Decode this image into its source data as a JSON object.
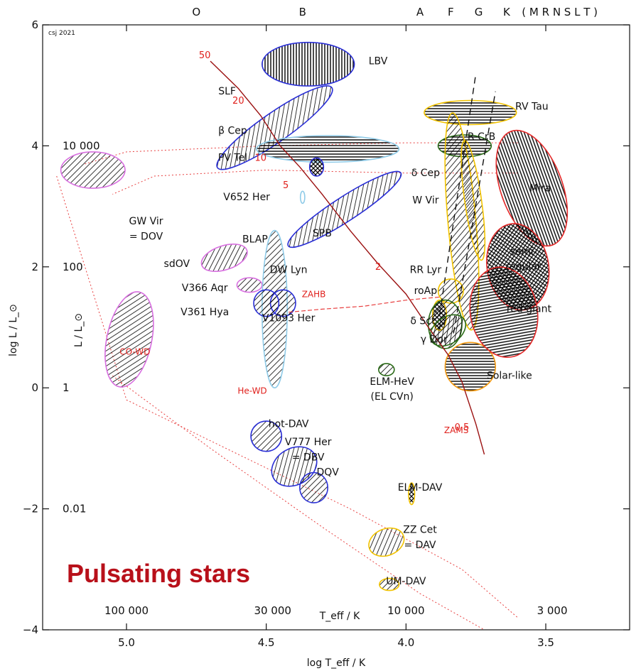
{
  "chart_data": {
    "type": "scatter",
    "title": "Pulsating stars",
    "credit": "csj 2021",
    "xlabel_bottom": "log T_eff / K",
    "xlabel_inner": "T_eff / K",
    "ylabel": "log L / L_⊙",
    "ylabel_inner": "L / L_⊙",
    "x_reversed": true,
    "xlim": [
      5.3,
      3.2
    ],
    "ylim": [
      -4,
      6
    ],
    "x_ticks": [
      5.0,
      4.5,
      4.0,
      3.5
    ],
    "x_tick_labels": [
      "5.0",
      "4.5",
      "4.0",
      "3.5"
    ],
    "y_ticks": [
      -4,
      -2,
      0,
      2,
      4,
      6
    ],
    "y_tick_labels": [
      "−4",
      "−2",
      "0",
      "2",
      "4",
      "6"
    ],
    "lum_labels": [
      {
        "y": 4,
        "text": "10 000"
      },
      {
        "y": 2,
        "text": "100"
      },
      {
        "y": 0,
        "text": "1"
      },
      {
        "y": -2,
        "text": "0.01"
      }
    ],
    "teff_labels": [
      {
        "x": 5.0,
        "text": "100 000"
      },
      {
        "x": 4.477,
        "text": "30 000"
      },
      {
        "x": 4.0,
        "text": "10 000"
      },
      {
        "x": 3.477,
        "text": "3 000"
      }
    ],
    "spectral_classes": [
      {
        "x": 4.75,
        "text": "O"
      },
      {
        "x": 4.37,
        "text": "B"
      },
      {
        "x": 3.95,
        "text": "A"
      },
      {
        "x": 3.84,
        "text": "F"
      },
      {
        "x": 3.74,
        "text": "G"
      },
      {
        "x": 3.64,
        "text": "K"
      },
      {
        "x": 3.45,
        "text": "( M R N S L T )"
      }
    ],
    "regions": [
      {
        "name": "LBV",
        "x": 4.35,
        "y": 5.35,
        "rx": 0.165,
        "ry": 0.36,
        "angle": 0,
        "color": "#2a2fd6",
        "hatch": "vertical"
      },
      {
        "name": "SLF",
        "x": 4.47,
        "y": 4.3,
        "rx": 0.25,
        "ry": 0.24,
        "angle": -35,
        "color": "#2a2fd6",
        "hatch": "diag"
      },
      {
        "name": "β Cep",
        "x": 4.28,
        "y": 3.95,
        "rx": 0.255,
        "ry": 0.22,
        "angle": 0,
        "color": "#8fcbe8",
        "hatch": "horizontal"
      },
      {
        "name": "SPB",
        "x": 4.22,
        "y": 2.95,
        "rx": 0.24,
        "ry": 0.2,
        "angle": -33,
        "color": "#2a2fd6",
        "hatch": "diag"
      },
      {
        "name": "V652 Her",
        "x": 4.37,
        "y": 3.15,
        "rx": 0.008,
        "ry": 0.1,
        "angle": 0,
        "color": "#8fcbe8",
        "hatch": "none"
      },
      {
        "name": "PV Tel",
        "x": 4.32,
        "y": 3.65,
        "rx": 0.025,
        "ry": 0.15,
        "angle": 0,
        "color": "#2a2fd6",
        "hatch": "cross"
      },
      {
        "name": "GW Vir = DOV",
        "x": 5.12,
        "y": 3.6,
        "rx": 0.115,
        "ry": 0.3,
        "angle": 0,
        "color": "#d86fe0",
        "hatch": "diag"
      },
      {
        "name": "sdOV",
        "x": 4.65,
        "y": 2.15,
        "rx": 0.085,
        "ry": 0.2,
        "angle": -18,
        "color": "#d86fe0",
        "hatch": "diag"
      },
      {
        "name": "V366 Aqr",
        "x": 4.56,
        "y": 1.7,
        "rx": 0.045,
        "ry": 0.12,
        "angle": 0,
        "color": "#d86fe0",
        "hatch": "diag"
      },
      {
        "name": "CO-WD",
        "x": 4.99,
        "y": 0.8,
        "rx": 0.08,
        "ry": 0.8,
        "angle": 12,
        "color": "#d86fe0",
        "hatch": "diag"
      },
      {
        "name": "BLAP",
        "x": 4.47,
        "y": 1.3,
        "rx": 0.045,
        "ry": 1.3,
        "angle": 0,
        "color": "#8fcbe8",
        "hatch": "diag"
      },
      {
        "name": "DW Lyn",
        "x": 4.44,
        "y": 1.4,
        "rx": 0.045,
        "ry": 0.22,
        "angle": 0,
        "color": "#2a2fd6",
        "hatch": "diag"
      },
      {
        "name": "V361 Hya",
        "x": 4.5,
        "y": 1.4,
        "rx": 0.045,
        "ry": 0.22,
        "angle": 0,
        "color": "#2a2fd6",
        "hatch": "diag"
      },
      {
        "name": "hot-DAV",
        "x": 4.5,
        "y": -0.8,
        "rx": 0.055,
        "ry": 0.25,
        "angle": 0,
        "color": "#2a2fd6",
        "hatch": "diag"
      },
      {
        "name": "V777 Her = DBV",
        "x": 4.4,
        "y": -1.3,
        "rx": 0.085,
        "ry": 0.3,
        "angle": -30,
        "color": "#2a2fd6",
        "hatch": "diag"
      },
      {
        "name": "DQV",
        "x": 4.33,
        "y": -1.65,
        "rx": 0.05,
        "ry": 0.25,
        "angle": 0,
        "color": "#2a2fd6",
        "hatch": "diag"
      },
      {
        "name": "ELM-DAV",
        "x": 3.98,
        "y": -1.75,
        "rx": 0.011,
        "ry": 0.18,
        "angle": 0,
        "color": "#f2c300",
        "hatch": "cross"
      },
      {
        "name": "ZZ Cet = DAV",
        "x": 4.07,
        "y": -2.55,
        "rx": 0.065,
        "ry": 0.22,
        "angle": -22,
        "color": "#f2c300",
        "hatch": "diag"
      },
      {
        "name": "UM-DAV",
        "x": 4.06,
        "y": -3.25,
        "rx": 0.035,
        "ry": 0.1,
        "angle": 0,
        "color": "#f2c300",
        "hatch": "diag"
      },
      {
        "name": "ELM-HeV (EL CVn)",
        "x": 4.07,
        "y": 0.3,
        "rx": 0.028,
        "ry": 0.1,
        "angle": 0,
        "color": "#2b6b18",
        "hatch": "diag"
      },
      {
        "name": "RV Tau",
        "x": 3.77,
        "y": 4.55,
        "rx": 0.165,
        "ry": 0.2,
        "angle": 0,
        "color": "#f2c300",
        "hatch": "horizontal"
      },
      {
        "name": "R CrB",
        "x": 3.79,
        "y": 4.0,
        "rx": 0.095,
        "ry": 0.18,
        "angle": 0,
        "color": "#2b6b18",
        "hatch": "horizontal"
      },
      {
        "name": "δ Cep",
        "x": 3.8,
        "y": 2.75,
        "rx": 0.05,
        "ry": 1.8,
        "angle": -5,
        "color": "#f2c300",
        "hatch": "diag"
      },
      {
        "name": "W Vir",
        "x": 3.76,
        "y": 3.1,
        "rx": 0.03,
        "ry": 1.0,
        "angle": -8,
        "color": "#f2c300",
        "hatch": "diag"
      },
      {
        "name": "RR Lyr",
        "x": 3.84,
        "y": 1.6,
        "rx": 0.045,
        "ry": 0.2,
        "angle": 0,
        "color": "#f2c300",
        "hatch": "diag"
      },
      {
        "name": "roAp",
        "x": 3.88,
        "y": 1.2,
        "rx": 0.025,
        "ry": 0.25,
        "angle": 0,
        "color": "#f2c300",
        "hatch": "cross"
      },
      {
        "name": "Solar-like",
        "x": 3.77,
        "y": 0.35,
        "rx": 0.09,
        "ry": 0.4,
        "angle": 0,
        "color": "#f39a12",
        "hatch": "horizontal"
      },
      {
        "name": "δ Sct",
        "x": 3.86,
        "y": 1.05,
        "rx": 0.06,
        "ry": 0.4,
        "angle": 0,
        "color": "#2b6b18",
        "hatch": "diag"
      },
      {
        "name": "γ Dor",
        "x": 3.85,
        "y": 0.95,
        "rx": 0.07,
        "ry": 0.22,
        "angle": -35,
        "color": "#2b6b18",
        "hatch": "diag"
      },
      {
        "name": "Mira",
        "x": 3.55,
        "y": 3.3,
        "rx": 0.11,
        "ry": 1.0,
        "angle": -20,
        "color": "#e52a2a",
        "hatch": "vertical"
      },
      {
        "name": "semi-regular",
        "x": 3.6,
        "y": 2.0,
        "rx": 0.11,
        "ry": 0.72,
        "angle": -10,
        "color": "#e52a2a",
        "hatch": "cross"
      },
      {
        "name": "red giant",
        "x": 3.65,
        "y": 1.25,
        "rx": 0.12,
        "ry": 0.75,
        "angle": -10,
        "color": "#e52a2a",
        "hatch": "horizontal"
      }
    ],
    "zams_line": {
      "label": "ZAMS",
      "x": [
        4.7,
        4.6,
        4.52,
        4.45,
        4.38,
        4.3,
        4.2,
        4.1,
        4.0,
        3.92,
        3.85,
        3.8,
        3.75,
        3.72
      ],
      "y": [
        5.4,
        4.95,
        4.5,
        4.0,
        3.65,
        3.2,
        2.6,
        2.05,
        1.55,
        1.0,
        0.55,
        0.1,
        -0.6,
        -1.1
      ]
    },
    "zahb_line": {
      "label": "ZAHB",
      "x": [
        4.42,
        4.3,
        4.15,
        4.0,
        3.88
      ],
      "y": [
        1.25,
        1.3,
        1.35,
        1.45,
        1.5
      ]
    },
    "mass_labels": [
      {
        "x": 4.72,
        "y": 5.45,
        "text": "50"
      },
      {
        "x": 4.6,
        "y": 4.7,
        "text": "20"
      },
      {
        "x": 4.52,
        "y": 3.75,
        "text": "10"
      },
      {
        "x": 4.43,
        "y": 3.3,
        "text": "5"
      },
      {
        "x": 4.1,
        "y": 1.95,
        "text": "2"
      },
      {
        "x": 3.8,
        "y": -0.7,
        "text": "0.5"
      }
    ],
    "instability_strip": {
      "blue_edge": {
        "x": [
          3.88,
          3.75
        ],
        "y": [
          1.2,
          5.2
        ]
      },
      "red_edge": {
        "x": [
          3.83,
          3.68
        ],
        "y": [
          0.9,
          4.9
        ]
      }
    },
    "wd_cooling_tracks": [
      {
        "x": [
          5.25,
          5.0,
          4.6,
          4.2,
          3.8,
          3.6
        ],
        "y": [
          3.5,
          -0.2,
          -1.1,
          -2.0,
          -3.0,
          -3.8
        ]
      },
      {
        "x": [
          5.05,
          4.7,
          4.3,
          3.95,
          3.72
        ],
        "y": [
          0.2,
          -1.0,
          -2.3,
          -3.4,
          -4.0
        ]
      }
    ],
    "post_agb_tracks": [
      {
        "x": [
          3.6,
          4.0,
          4.5,
          5.0,
          5.15
        ],
        "y": [
          4.05,
          4.05,
          4.0,
          3.9,
          3.7
        ]
      },
      {
        "x": [
          3.6,
          4.0,
          4.5,
          4.9,
          5.05
        ],
        "y": [
          3.55,
          3.55,
          3.6,
          3.5,
          3.2
        ]
      }
    ],
    "text_labels": [
      {
        "x": 4.1,
        "y": 5.35,
        "text": "LBV",
        "cls": "region"
      },
      {
        "x": 4.64,
        "y": 4.85,
        "text": "SLF",
        "cls": "region"
      },
      {
        "x": 4.62,
        "y": 4.2,
        "text": "β Cep",
        "cls": "region"
      },
      {
        "x": 4.62,
        "y": 3.75,
        "text": "PV Tel",
        "cls": "region"
      },
      {
        "x": 4.57,
        "y": 3.1,
        "text": "V652 Her",
        "cls": "region"
      },
      {
        "x": 4.3,
        "y": 2.5,
        "text": "SPB",
        "cls": "region"
      },
      {
        "x": 4.93,
        "y": 2.7,
        "text": "GW Vir",
        "cls": "region"
      },
      {
        "x": 4.93,
        "y": 2.45,
        "text": "= DOV",
        "cls": "region"
      },
      {
        "x": 4.82,
        "y": 2.0,
        "text": "sdOV",
        "cls": "region"
      },
      {
        "x": 4.54,
        "y": 2.4,
        "text": "BLAP",
        "cls": "region"
      },
      {
        "x": 4.42,
        "y": 1.9,
        "text": "DW Lyn",
        "cls": "region"
      },
      {
        "x": 4.72,
        "y": 1.6,
        "text": "V366 Aqr",
        "cls": "region"
      },
      {
        "x": 4.72,
        "y": 1.2,
        "text": "V361 Hya",
        "cls": "region"
      },
      {
        "x": 4.42,
        "y": 1.1,
        "text": "V1093 Her",
        "cls": "region"
      },
      {
        "x": 4.33,
        "y": 1.5,
        "text": "ZAHB",
        "cls": "red"
      },
      {
        "x": 4.97,
        "y": 0.55,
        "text": "CO-WD",
        "cls": "red"
      },
      {
        "x": 4.55,
        "y": -0.1,
        "text": "He-WD",
        "cls": "red"
      },
      {
        "x": 4.42,
        "y": -0.65,
        "text": "hot-DAV",
        "cls": "region"
      },
      {
        "x": 4.35,
        "y": -0.95,
        "text": "V777 Her",
        "cls": "region"
      },
      {
        "x": 4.35,
        "y": -1.2,
        "text": "= DBV",
        "cls": "region"
      },
      {
        "x": 4.28,
        "y": -1.45,
        "text": "DQV",
        "cls": "region"
      },
      {
        "x": 3.95,
        "y": -1.7,
        "text": "ELM-DAV",
        "cls": "region"
      },
      {
        "x": 3.95,
        "y": -2.4,
        "text": "ZZ Cet",
        "cls": "region"
      },
      {
        "x": 3.95,
        "y": -2.65,
        "text": "= DAV",
        "cls": "region"
      },
      {
        "x": 4.0,
        "y": -3.25,
        "text": "UM-DAV",
        "cls": "region"
      },
      {
        "x": 4.05,
        "y": 0.05,
        "text": "ELM-HeV",
        "cls": "region"
      },
      {
        "x": 4.05,
        "y": -0.2,
        "text": "(EL CVn)",
        "cls": "region"
      },
      {
        "x": 3.82,
        "y": -0.75,
        "text": "ZAMS",
        "cls": "red"
      },
      {
        "x": 3.55,
        "y": 4.6,
        "text": "RV Tau",
        "cls": "region"
      },
      {
        "x": 3.73,
        "y": 4.1,
        "text": "R CrB",
        "cls": "region"
      },
      {
        "x": 3.93,
        "y": 3.5,
        "text": "δ Cep",
        "cls": "region"
      },
      {
        "x": 3.93,
        "y": 3.05,
        "text": "W Vir",
        "cls": "region"
      },
      {
        "x": 3.52,
        "y": 3.25,
        "text": "Mira",
        "cls": "region"
      },
      {
        "x": 3.93,
        "y": 1.9,
        "text": "RR Lyr",
        "cls": "region"
      },
      {
        "x": 3.58,
        "y": 2.2,
        "text": "semi-",
        "cls": "region"
      },
      {
        "x": 3.58,
        "y": 1.95,
        "text": "regular",
        "cls": "region"
      },
      {
        "x": 3.93,
        "y": 1.55,
        "text": "roAp",
        "cls": "region"
      },
      {
        "x": 3.56,
        "y": 1.25,
        "text": "red giant",
        "cls": "region"
      },
      {
        "x": 3.94,
        "y": 1.05,
        "text": "δ Sct",
        "cls": "region"
      },
      {
        "x": 3.9,
        "y": 0.75,
        "text": "γ Dor",
        "cls": "region"
      },
      {
        "x": 3.63,
        "y": 0.15,
        "text": "Solar-like",
        "cls": "region"
      }
    ]
  }
}
